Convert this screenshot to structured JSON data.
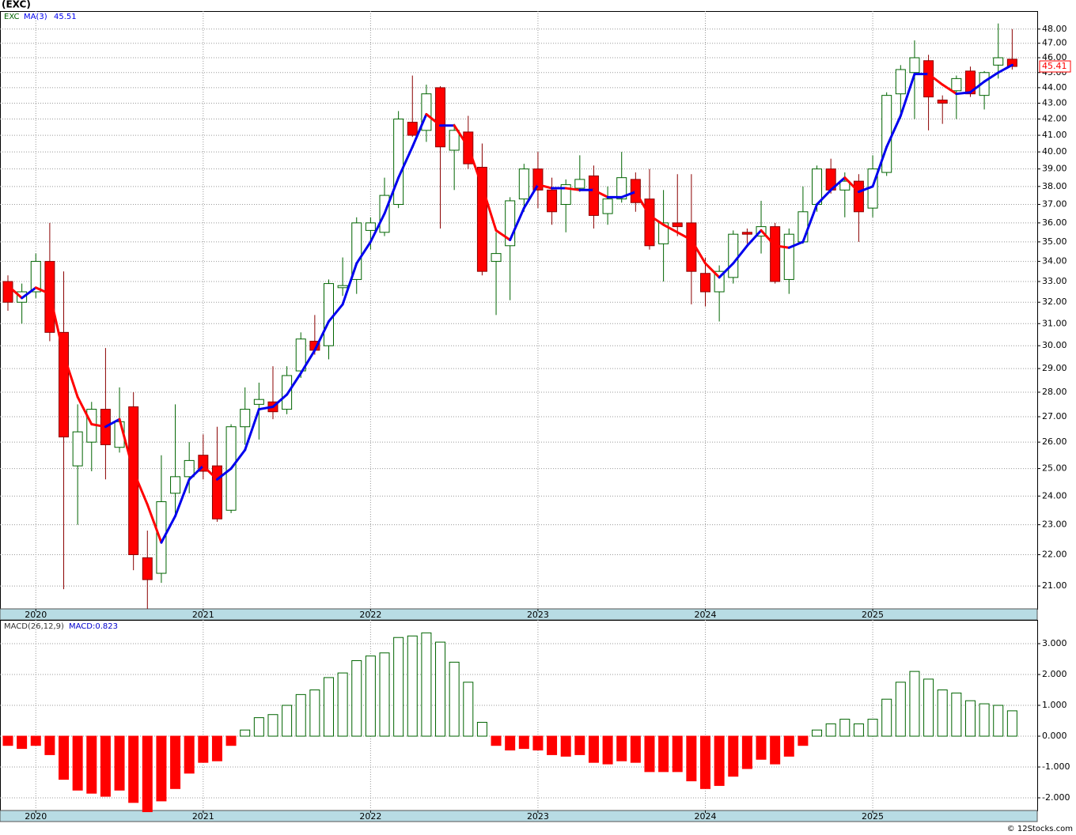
{
  "ticker_label": "(EXC)",
  "footer": "© 12Stocks.com",
  "chart_data": [
    {
      "type": "candlestick",
      "symbol": "EXC",
      "ma_name": "MA(3)",
      "ma_value": 45.51,
      "categories": [
        null,
        null,
        "2020",
        null,
        null,
        null,
        null,
        null,
        null,
        null,
        null,
        null,
        null,
        null,
        "2021",
        null,
        null,
        null,
        null,
        null,
        null,
        null,
        null,
        null,
        null,
        null,
        "2022",
        null,
        null,
        null,
        null,
        null,
        null,
        null,
        null,
        null,
        null,
        null,
        "2023",
        null,
        null,
        null,
        null,
        null,
        null,
        null,
        null,
        null,
        null,
        null,
        "2024",
        null,
        null,
        null,
        null,
        null,
        null,
        null,
        null,
        null,
        null,
        null,
        "2025",
        null,
        null,
        null,
        null,
        null,
        null,
        null,
        null,
        null,
        null
      ],
      "open": [
        33.0,
        32.0,
        32.5,
        34.0,
        30.6,
        25.1,
        26.0,
        27.3,
        25.8,
        27.4,
        21.9,
        21.4,
        24.1,
        24.7,
        25.5,
        25.1,
        23.5,
        26.6,
        27.5,
        27.6,
        27.3,
        28.9,
        30.2,
        30.0,
        32.7,
        33.1,
        35.6,
        35.5,
        37.0,
        41.8,
        41.3,
        44.0,
        40.1,
        41.2,
        39.1,
        34.0,
        34.8,
        37.3,
        39.0,
        37.8,
        37.0,
        37.9,
        38.6,
        36.5,
        37.3,
        38.4,
        37.3,
        34.9,
        36.0,
        36.0,
        33.4,
        32.5,
        33.2,
        35.5,
        35.3,
        35.8,
        33.1,
        35.0,
        37.0,
        39.0,
        37.8,
        38.3,
        36.8,
        38.8,
        43.6,
        45.0,
        45.8,
        43.2,
        43.8,
        45.1,
        43.5,
        45.5,
        45.9
      ],
      "high": [
        33.3,
        32.9,
        34.4,
        36.0,
        33.5,
        27.5,
        27.6,
        29.9,
        28.2,
        28.0,
        22.8,
        25.5,
        27.5,
        26.0,
        26.3,
        26.6,
        26.7,
        28.2,
        28.4,
        29.1,
        29.1,
        30.6,
        31.4,
        33.1,
        34.2,
        36.3,
        36.3,
        38.5,
        42.5,
        44.8,
        44.2,
        44.1,
        41.7,
        42.2,
        40.5,
        35.5,
        37.4,
        39.3,
        40.0,
        38.5,
        38.4,
        39.8,
        39.2,
        38.0,
        40.0,
        38.8,
        39.0,
        37.8,
        38.7,
        38.7,
        34.2,
        33.8,
        35.6,
        35.7,
        37.2,
        36.0,
        35.7,
        38.0,
        39.2,
        39.6,
        38.8,
        38.7,
        39.8,
        43.7,
        45.5,
        47.2,
        46.2,
        43.5,
        44.8,
        45.4,
        45.1,
        48.4,
        48.0
      ],
      "low": [
        31.6,
        31.0,
        32.2,
        30.2,
        20.9,
        23.0,
        24.9,
        24.6,
        25.6,
        21.5,
        20.3,
        21.1,
        23.3,
        24.1,
        24.6,
        23.1,
        23.4,
        25.9,
        26.1,
        26.9,
        27.1,
        28.6,
        29.6,
        29.4,
        32.3,
        32.4,
        34.6,
        35.3,
        36.8,
        40.9,
        40.6,
        35.7,
        37.8,
        39.0,
        33.3,
        31.4,
        32.1,
        36.6,
        36.8,
        35.9,
        35.5,
        37.7,
        35.7,
        35.9,
        37.1,
        36.6,
        34.6,
        33.0,
        35.3,
        31.9,
        31.8,
        31.1,
        32.9,
        34.9,
        34.4,
        32.9,
        32.4,
        34.9,
        36.6,
        37.6,
        36.3,
        35.0,
        36.3,
        38.6,
        42.0,
        42.0,
        41.3,
        41.7,
        42.0,
        43.4,
        42.6,
        44.6,
        45.2
      ],
      "close": [
        32.0,
        32.5,
        34.0,
        30.6,
        26.2,
        26.4,
        27.3,
        25.9,
        26.8,
        22.0,
        21.2,
        23.8,
        24.7,
        25.3,
        24.9,
        23.2,
        26.6,
        27.3,
        27.7,
        27.2,
        28.7,
        30.3,
        29.8,
        32.9,
        32.8,
        36.0,
        36.0,
        37.5,
        42.0,
        41.0,
        43.6,
        40.3,
        41.3,
        39.3,
        33.5,
        34.4,
        37.2,
        39.0,
        37.8,
        36.6,
        38.1,
        38.4,
        36.4,
        37.3,
        38.5,
        37.1,
        34.8,
        36.0,
        35.8,
        33.5,
        32.5,
        33.5,
        35.4,
        35.4,
        35.8,
        33.0,
        35.4,
        36.6,
        39.0,
        37.8,
        38.3,
        36.6,
        39.0,
        43.5,
        45.2,
        46.0,
        43.4,
        43.0,
        44.6,
        43.6,
        45.0,
        46.0,
        45.41
      ],
      "ma": [
        32.8,
        32.2,
        32.7,
        32.4,
        29.6,
        27.8,
        26.7,
        26.6,
        26.9,
        24.9,
        23.7,
        22.4,
        23.3,
        24.6,
        25.1,
        24.6,
        25.0,
        25.7,
        27.3,
        27.4,
        27.9,
        28.8,
        29.8,
        31.1,
        31.9,
        33.9,
        35.0,
        36.5,
        38.5,
        40.3,
        42.3,
        41.6,
        41.6,
        40.3,
        38.0,
        35.6,
        35.1,
        36.8,
        38.1,
        37.9,
        37.9,
        37.8,
        37.8,
        37.4,
        37.4,
        37.7,
        36.4,
        35.9,
        35.5,
        35.1,
        33.9,
        33.2,
        33.9,
        34.8,
        35.6,
        34.8,
        34.7,
        35.0,
        37.0,
        37.8,
        38.5,
        37.7,
        38.0,
        40.3,
        42.2,
        44.9,
        44.9,
        44.2,
        43.6,
        43.7,
        44.4,
        45.0,
        45.51
      ],
      "up_color": "#006400",
      "down_color": "#ff0000",
      "ma_up_color": "#0000ee",
      "ma_down_color": "#ff0000",
      "ylim": [
        20.3,
        49.3
      ],
      "log_scale": true,
      "grid": true,
      "yticks": [
        {
          "value": 21,
          "label": "21.00"
        },
        {
          "value": 22,
          "label": "22.00"
        },
        {
          "value": 23,
          "label": "23.00"
        },
        {
          "value": 24,
          "label": "24.00"
        },
        {
          "value": 25,
          "label": "25.00"
        },
        {
          "value": 26,
          "label": "26.00"
        },
        {
          "value": 27,
          "label": "27.00"
        },
        {
          "value": 28,
          "label": "28.00"
        },
        {
          "value": 29,
          "label": "29.00"
        },
        {
          "value": 30,
          "label": "30.00"
        },
        {
          "value": 31,
          "label": "31.00"
        },
        {
          "value": 32,
          "label": "32.00"
        },
        {
          "value": 33,
          "label": "33.00"
        },
        {
          "value": 34,
          "label": "34.00"
        },
        {
          "value": 35,
          "label": "35.00"
        },
        {
          "value": 36,
          "label": "36.00"
        },
        {
          "value": 37,
          "label": "37.00"
        },
        {
          "value": 38,
          "label": "38.00"
        },
        {
          "value": 39,
          "label": "39.00"
        },
        {
          "value": 40,
          "label": "40.00"
        },
        {
          "value": 41,
          "label": "41.00"
        },
        {
          "value": 42,
          "label": "42.00"
        },
        {
          "value": 43,
          "label": "43.00"
        },
        {
          "value": 44,
          "label": "44.00"
        },
        {
          "value": 45,
          "label": "45.00"
        },
        {
          "value": 46,
          "label": "46.00"
        },
        {
          "value": 47,
          "label": "47.00"
        },
        {
          "value": 48,
          "label": "48.00"
        }
      ]
    },
    {
      "type": "bar",
      "title": "MACD(26,12,9)",
      "legend": "MACD:0.823",
      "categories": [
        null,
        null,
        "2020",
        null,
        null,
        null,
        null,
        null,
        null,
        null,
        null,
        null,
        null,
        null,
        "2021",
        null,
        null,
        null,
        null,
        null,
        null,
        null,
        null,
        null,
        null,
        null,
        "2022",
        null,
        null,
        null,
        null,
        null,
        null,
        null,
        null,
        null,
        null,
        null,
        "2023",
        null,
        null,
        null,
        null,
        null,
        null,
        null,
        null,
        null,
        null,
        null,
        "2024",
        null,
        null,
        null,
        null,
        null,
        null,
        null,
        null,
        null,
        null,
        null,
        "2025",
        null,
        null,
        null,
        null,
        null,
        null,
        null,
        null,
        null,
        null
      ],
      "values": [
        -0.3,
        -0.4,
        -0.3,
        -0.6,
        -1.4,
        -1.75,
        -1.85,
        -1.95,
        -1.75,
        -2.15,
        -2.45,
        -2.1,
        -1.7,
        -1.2,
        -0.85,
        -0.8,
        -0.3,
        0.2,
        0.6,
        0.7,
        1.0,
        1.35,
        1.5,
        1.9,
        2.05,
        2.45,
        2.6,
        2.7,
        3.2,
        3.25,
        3.35,
        3.05,
        2.4,
        1.75,
        0.45,
        -0.3,
        -0.45,
        -0.4,
        -0.45,
        -0.6,
        -0.65,
        -0.6,
        -0.85,
        -0.9,
        -0.8,
        -0.85,
        -1.15,
        -1.15,
        -1.15,
        -1.45,
        -1.7,
        -1.6,
        -1.3,
        -1.05,
        -0.75,
        -0.9,
        -0.65,
        -0.3,
        0.2,
        0.4,
        0.55,
        0.4,
        0.55,
        1.2,
        1.75,
        2.1,
        1.85,
        1.5,
        1.4,
        1.15,
        1.05,
        1.0,
        0.823
      ],
      "positive_color": "#006400",
      "negative_color": "#ff0000",
      "ylim": [
        -2.41,
        3.77
      ],
      "grid": true,
      "yticks": [
        {
          "value": -2,
          "label": "-2.000"
        },
        {
          "value": -1,
          "label": "-1.000"
        },
        {
          "value": 0,
          "label": "0.000"
        },
        {
          "value": 1,
          "label": "1.000"
        },
        {
          "value": 2,
          "label": "2.000"
        },
        {
          "value": 3,
          "label": "3.000"
        }
      ]
    }
  ]
}
